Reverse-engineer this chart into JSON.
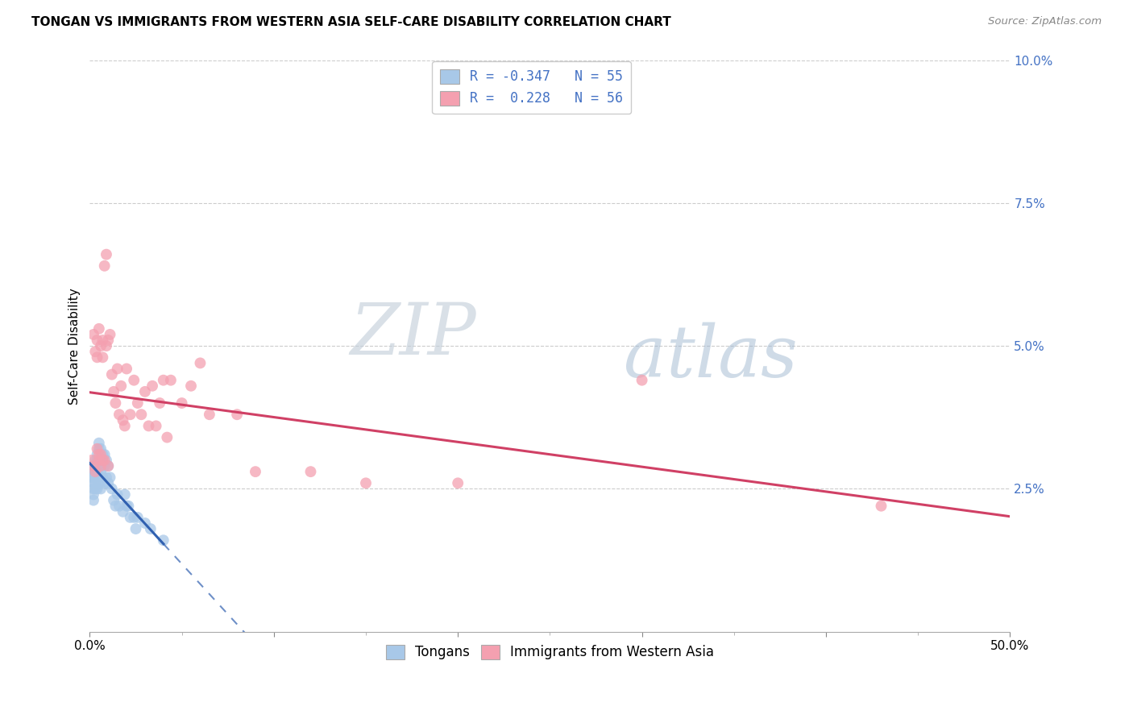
{
  "title": "TONGAN VS IMMIGRANTS FROM WESTERN ASIA SELF-CARE DISABILITY CORRELATION CHART",
  "source": "Source: ZipAtlas.com",
  "ylabel": "Self-Care Disability",
  "legend_label1": "Tongans",
  "legend_label2": "Immigrants from Western Asia",
  "blue_color": "#a8c8e8",
  "pink_color": "#f4a0b0",
  "line_blue": "#3060b0",
  "line_pink": "#d04065",
  "watermark_zip": "ZIP",
  "watermark_atlas": "atlas",
  "tongans_x": [
    0.001,
    0.001,
    0.002,
    0.002,
    0.002,
    0.002,
    0.002,
    0.002,
    0.002,
    0.003,
    0.003,
    0.003,
    0.003,
    0.003,
    0.003,
    0.004,
    0.004,
    0.004,
    0.004,
    0.004,
    0.005,
    0.005,
    0.005,
    0.005,
    0.006,
    0.006,
    0.006,
    0.006,
    0.007,
    0.007,
    0.007,
    0.008,
    0.008,
    0.008,
    0.009,
    0.009,
    0.01,
    0.01,
    0.011,
    0.012,
    0.013,
    0.014,
    0.015,
    0.016,
    0.018,
    0.019,
    0.02,
    0.021,
    0.022,
    0.024,
    0.025,
    0.026,
    0.03,
    0.033,
    0.04
  ],
  "tongans_y": [
    0.028,
    0.027,
    0.029,
    0.028,
    0.027,
    0.026,
    0.025,
    0.024,
    0.023,
    0.03,
    0.029,
    0.028,
    0.027,
    0.026,
    0.025,
    0.031,
    0.03,
    0.029,
    0.028,
    0.025,
    0.033,
    0.032,
    0.03,
    0.026,
    0.032,
    0.03,
    0.028,
    0.025,
    0.031,
    0.03,
    0.027,
    0.031,
    0.029,
    0.026,
    0.03,
    0.027,
    0.029,
    0.026,
    0.027,
    0.025,
    0.023,
    0.022,
    0.024,
    0.022,
    0.021,
    0.024,
    0.022,
    0.022,
    0.02,
    0.02,
    0.018,
    0.02,
    0.019,
    0.018,
    0.016
  ],
  "western_asia_x": [
    0.001,
    0.002,
    0.002,
    0.003,
    0.003,
    0.004,
    0.004,
    0.004,
    0.005,
    0.005,
    0.005,
    0.006,
    0.006,
    0.006,
    0.007,
    0.007,
    0.007,
    0.008,
    0.008,
    0.009,
    0.009,
    0.01,
    0.01,
    0.011,
    0.012,
    0.013,
    0.014,
    0.015,
    0.016,
    0.017,
    0.018,
    0.019,
    0.02,
    0.022,
    0.024,
    0.026,
    0.028,
    0.03,
    0.032,
    0.034,
    0.036,
    0.038,
    0.04,
    0.042,
    0.044,
    0.05,
    0.055,
    0.06,
    0.065,
    0.08,
    0.09,
    0.12,
    0.15,
    0.2,
    0.3,
    0.43
  ],
  "western_asia_y": [
    0.03,
    0.029,
    0.052,
    0.028,
    0.049,
    0.032,
    0.051,
    0.048,
    0.031,
    0.053,
    0.03,
    0.05,
    0.031,
    0.029,
    0.051,
    0.048,
    0.03,
    0.064,
    0.03,
    0.066,
    0.05,
    0.051,
    0.029,
    0.052,
    0.045,
    0.042,
    0.04,
    0.046,
    0.038,
    0.043,
    0.037,
    0.036,
    0.046,
    0.038,
    0.044,
    0.04,
    0.038,
    0.042,
    0.036,
    0.043,
    0.036,
    0.04,
    0.044,
    0.034,
    0.044,
    0.04,
    0.043,
    0.047,
    0.038,
    0.038,
    0.028,
    0.028,
    0.026,
    0.026,
    0.044,
    0.022
  ],
  "xlim": [
    0.0,
    0.5
  ],
  "ylim": [
    0.0,
    0.1
  ],
  "right_yticks": [
    0.0,
    0.025,
    0.05,
    0.075,
    0.1
  ],
  "right_yticklabels": [
    "",
    "2.5%",
    "5.0%",
    "7.5%",
    "10.0%"
  ]
}
